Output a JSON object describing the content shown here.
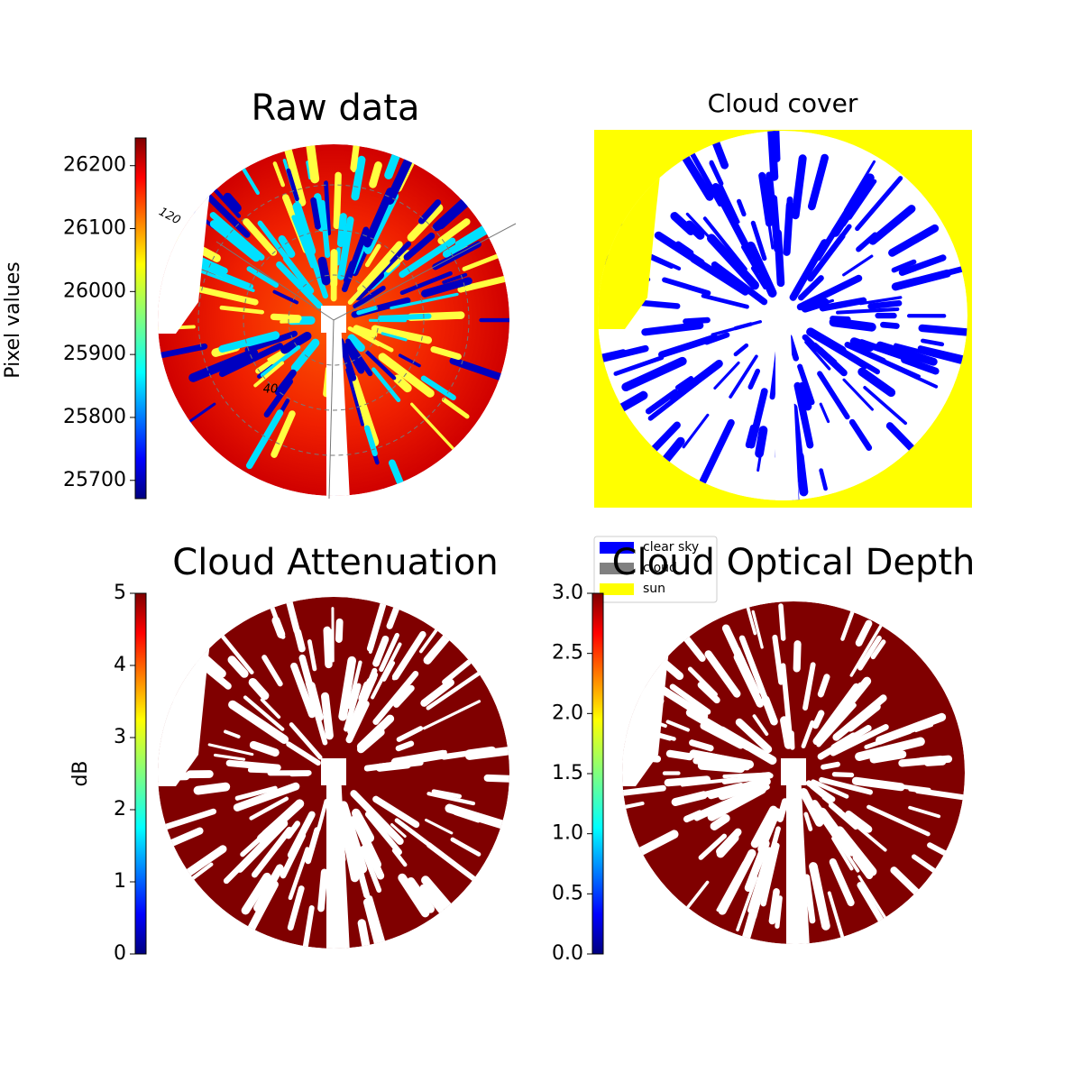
{
  "chart_data": [
    {
      "type": "image",
      "title": "Raw data",
      "colormap": "jet",
      "colorbar": {
        "label": "Pixel values",
        "lim": [
          25671,
          26244
        ],
        "ticks": [
          25700,
          25800,
          25900,
          26000,
          26100,
          26200
        ]
      },
      "annotations": [
        "120",
        "40"
      ]
    },
    {
      "type": "classification",
      "title": "Cloud cover",
      "legend": [
        {
          "name": "clear sky",
          "color": "#0000ff"
        },
        {
          "name": "cloud",
          "color": "#808080"
        },
        {
          "name": "sun",
          "color": "#ffff00"
        }
      ]
    },
    {
      "type": "image",
      "title": "Cloud Attenuation",
      "colormap": "jet",
      "colorbar": {
        "label": "dB",
        "lim": [
          0,
          5
        ],
        "ticks": [
          0,
          1,
          2,
          3,
          4,
          5
        ]
      }
    },
    {
      "type": "image",
      "title": "Cloud Optical Depth",
      "colormap": "jet",
      "colorbar": {
        "lim": [
          0,
          3
        ],
        "ticks": [
          {
            "value": 0,
            "label": "0.0"
          },
          {
            "value": 0.5,
            "label": "0.5"
          },
          {
            "value": 1,
            "label": "1.0"
          },
          {
            "value": 1.5,
            "label": "1.5"
          },
          {
            "value": 2,
            "label": "2.0"
          },
          {
            "value": 2.5,
            "label": "2.5"
          },
          {
            "value": 3,
            "label": "3.0"
          }
        ]
      }
    }
  ]
}
